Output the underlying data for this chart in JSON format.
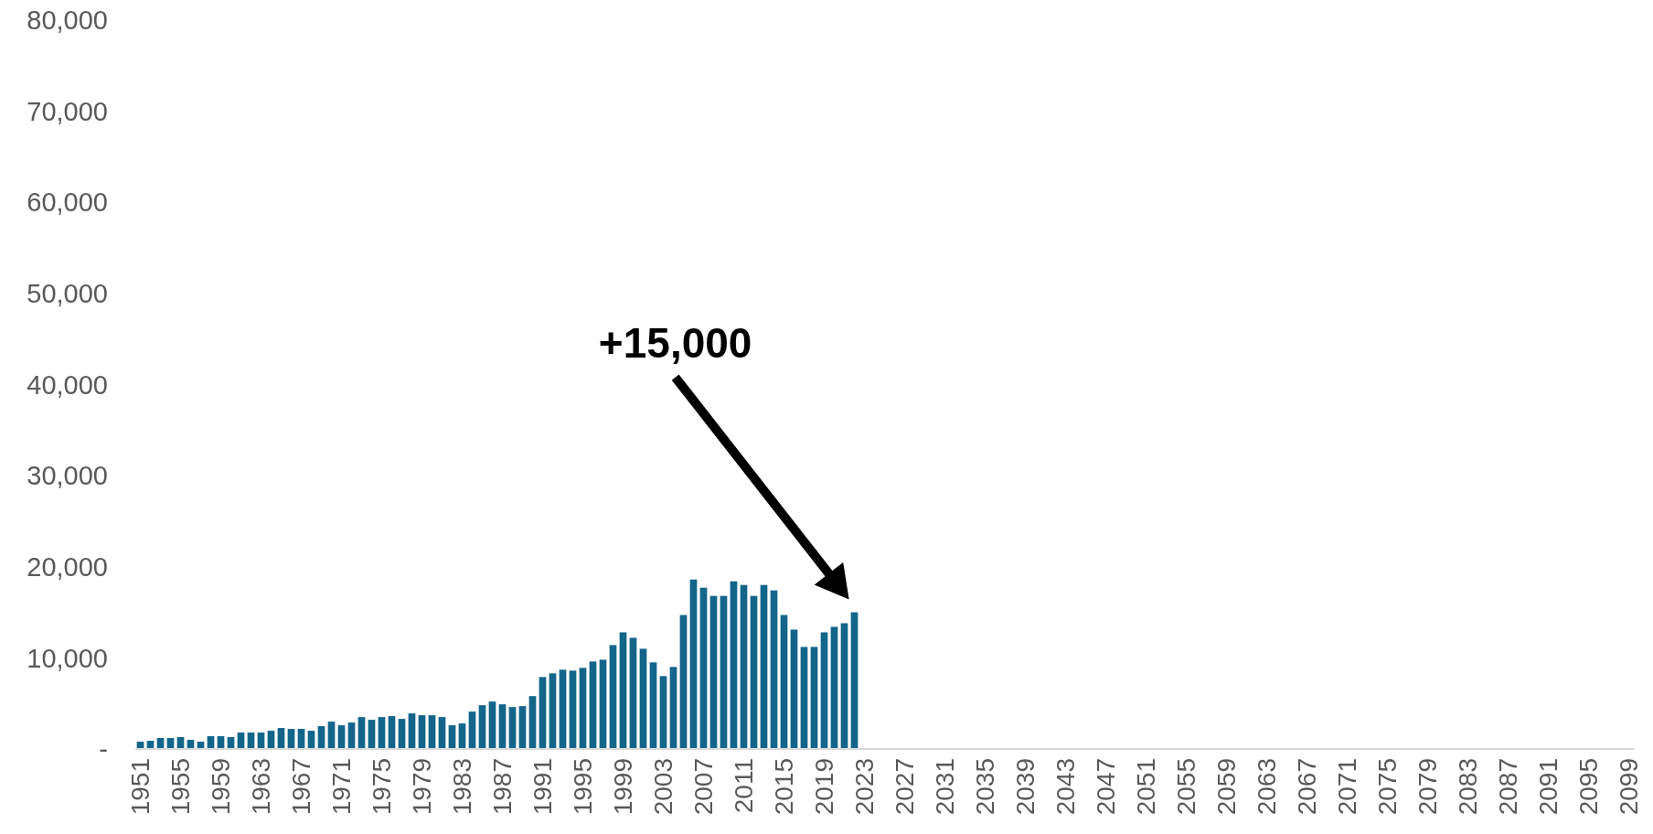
{
  "chart_data": {
    "type": "bar",
    "categories": [
      "1951",
      null,
      null,
      null,
      "1955",
      null,
      null,
      null,
      "1959",
      null,
      null,
      null,
      "1963",
      null,
      null,
      null,
      "1967",
      null,
      null,
      null,
      "1971",
      null,
      null,
      null,
      "1975",
      null,
      null,
      null,
      "1979",
      null,
      null,
      null,
      "1983",
      null,
      null,
      null,
      "1987",
      null,
      null,
      null,
      "1991",
      null,
      null,
      null,
      "1995",
      null,
      null,
      null,
      "1999",
      null,
      null,
      null,
      "2003",
      null,
      null,
      null,
      "2007",
      null,
      null,
      null,
      "2011",
      null,
      null,
      null,
      "2015",
      null,
      null,
      null,
      "2019",
      null,
      null,
      null,
      "2023",
      null,
      null,
      null,
      "2027",
      null,
      null,
      null,
      "2031",
      null,
      null,
      null,
      "2035",
      null,
      null,
      null,
      "2039",
      null,
      null,
      null,
      "2043",
      null,
      null,
      null,
      "2047",
      null,
      null,
      null,
      "2051",
      null,
      null,
      null,
      "2055",
      null,
      null,
      null,
      "2059",
      null,
      null,
      null,
      "2063",
      null,
      null,
      null,
      "2067",
      null,
      null,
      null,
      "2071",
      null,
      null,
      null,
      "2075",
      null,
      null,
      null,
      "2079",
      null,
      null,
      null,
      "2083",
      null,
      null,
      null,
      "2087",
      null,
      null,
      null,
      "2091",
      null,
      null,
      null,
      "2095",
      null,
      null,
      null,
      "2099"
    ],
    "values": [
      800,
      900,
      1200,
      1200,
      1300,
      1000,
      800,
      1400,
      1400,
      1300,
      1800,
      1800,
      1800,
      2000,
      2300,
      2200,
      2200,
      2000,
      2500,
      3000,
      2600,
      2900,
      3500,
      3200,
      3500,
      3600,
      3300,
      3900,
      3700,
      3700,
      3500,
      2600,
      2800,
      4100,
      4800,
      5200,
      4900,
      4600,
      4700,
      5800,
      7900,
      8300,
      8700,
      8600,
      8900,
      9600,
      9800,
      11400,
      12800,
      12200,
      11000,
      9500,
      8000,
      9000,
      14700,
      18600,
      17700,
      16800,
      16800,
      18400,
      18000,
      16800,
      18000,
      17400,
      14700,
      13100,
      11200,
      11200,
      12800,
      13400,
      13800,
      15000,
      null,
      null,
      null,
      null,
      null,
      null,
      null,
      null,
      null,
      null,
      null,
      null,
      null,
      null,
      null,
      null,
      null,
      null,
      null,
      null,
      null,
      null,
      null,
      null,
      null,
      null,
      null,
      null,
      null,
      null,
      null,
      null,
      null,
      null,
      null,
      null,
      null,
      null,
      null,
      null,
      null,
      null,
      null,
      null,
      null,
      null,
      null,
      null,
      null,
      null,
      null,
      null,
      null,
      null,
      null,
      null,
      null,
      null,
      null,
      null,
      null,
      null,
      null,
      null,
      null,
      null,
      null,
      null,
      null,
      null,
      null,
      null,
      null,
      null,
      null,
      null,
      null
    ],
    "color": "#13658a",
    "ylim": [
      0,
      80000
    ],
    "yticks": [
      {
        "value": 0,
        "label": "-"
      },
      {
        "value": 10000,
        "label": "10,000"
      },
      {
        "value": 20000,
        "label": "20,000"
      },
      {
        "value": 30000,
        "label": "30,000"
      },
      {
        "value": 40000,
        "label": "40,000"
      },
      {
        "value": 50000,
        "label": "50,000"
      },
      {
        "value": 60000,
        "label": "60,000"
      },
      {
        "value": 70000,
        "label": "70,000"
      },
      {
        "value": 80000,
        "label": "80,000"
      }
    ],
    "annotations": [
      "+15,000"
    ]
  }
}
